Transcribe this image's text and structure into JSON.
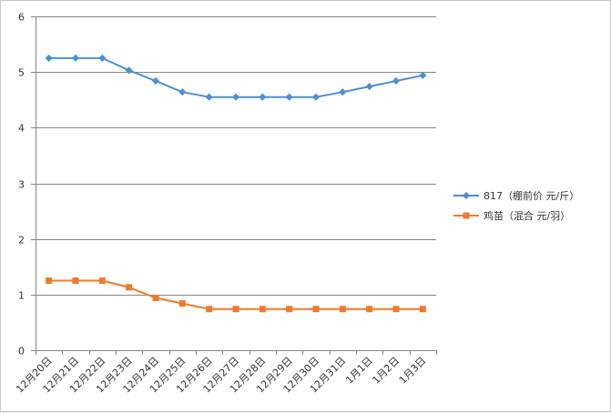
{
  "chart_data": {
    "type": "line",
    "categories": [
      "12月20日",
      "12月21日",
      "12月22日",
      "12月23日",
      "12月24日",
      "12月25日",
      "12月26日",
      "12月27日",
      "12月28日",
      "12月29日",
      "12月30日",
      "12月31日",
      "1月1日",
      "1月2日",
      "1月3日"
    ],
    "series": [
      {
        "name": "817（棚前价 元/斤）",
        "color": "#4a8fd4",
        "marker": "diamond",
        "values": [
          5.25,
          5.25,
          5.25,
          5.03,
          4.84,
          4.64,
          4.55,
          4.55,
          4.55,
          4.55,
          4.55,
          4.64,
          4.74,
          4.84,
          4.94
        ]
      },
      {
        "name": "鸡苗（混合 元/羽）",
        "color": "#ee7a2a",
        "marker": "square",
        "values": [
          1.25,
          1.25,
          1.25,
          1.13,
          0.94,
          0.84,
          0.74,
          0.74,
          0.74,
          0.74,
          0.74,
          0.74,
          0.74,
          0.74,
          0.74
        ]
      }
    ],
    "ylim": [
      0,
      6
    ],
    "yticks": [
      "0",
      "1",
      "2",
      "3",
      "4",
      "5",
      "6"
    ],
    "grid": true,
    "legend_position": "right"
  }
}
